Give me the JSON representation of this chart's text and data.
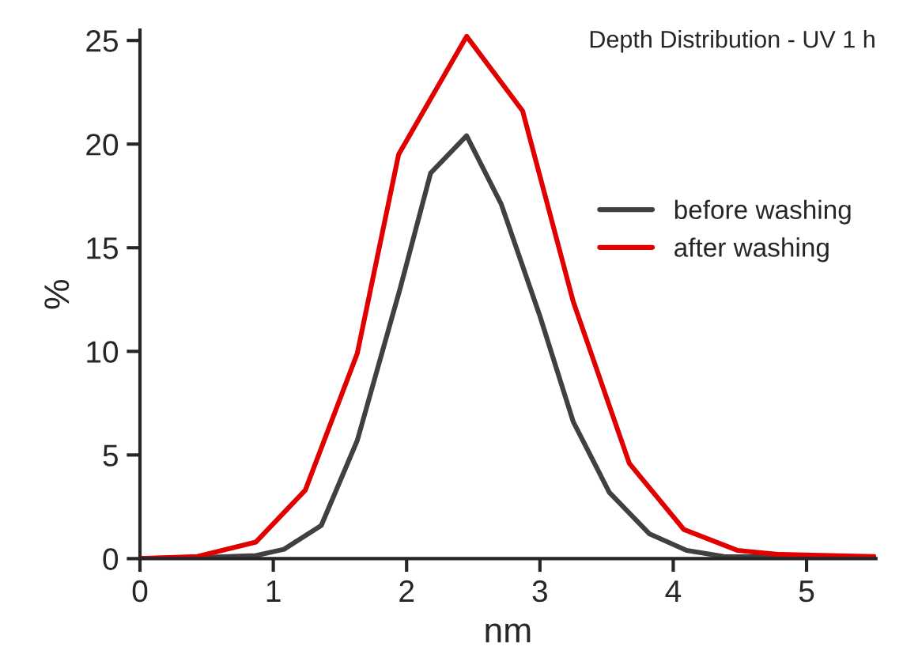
{
  "chart_data": {
    "type": "line",
    "title": "Depth Distribution - UV 1 h",
    "xlabel": "nm",
    "ylabel": "%",
    "xlim": [
      0,
      5.52
    ],
    "xticks": [
      0,
      1,
      2,
      3,
      4,
      5
    ],
    "ylim": [
      0,
      25.5
    ],
    "yticks": [
      0,
      5,
      10,
      15,
      20,
      25
    ],
    "grid": false,
    "legend": "right",
    "marker": "none",
    "line_style": "solid",
    "series": [
      {
        "name": "before washing",
        "color": "#404040",
        "x": [
          0,
          0.43,
          0.87,
          1.08,
          1.36,
          1.63,
          1.95,
          2.18,
          2.45,
          2.71,
          3.0,
          3.25,
          3.52,
          3.82,
          4.1,
          4.38,
          5.51
        ],
        "values": [
          0,
          0.05,
          0.15,
          0.45,
          1.6,
          5.7,
          13,
          18.6,
          20.4,
          17.1,
          11.7,
          6.6,
          3.2,
          1.2,
          0.4,
          0.1,
          0.05
        ]
      },
      {
        "name": "after washing",
        "color": "#e00000",
        "x": [
          0,
          0.43,
          0.87,
          1.24,
          1.63,
          1.94,
          2.45,
          2.87,
          3.25,
          3.67,
          4.08,
          4.48,
          4.8,
          5.51
        ],
        "values": [
          0,
          0.1,
          0.8,
          3.3,
          9.9,
          19.5,
          25.2,
          21.6,
          12.4,
          4.6,
          1.4,
          0.4,
          0.2,
          0.1
        ]
      }
    ]
  }
}
